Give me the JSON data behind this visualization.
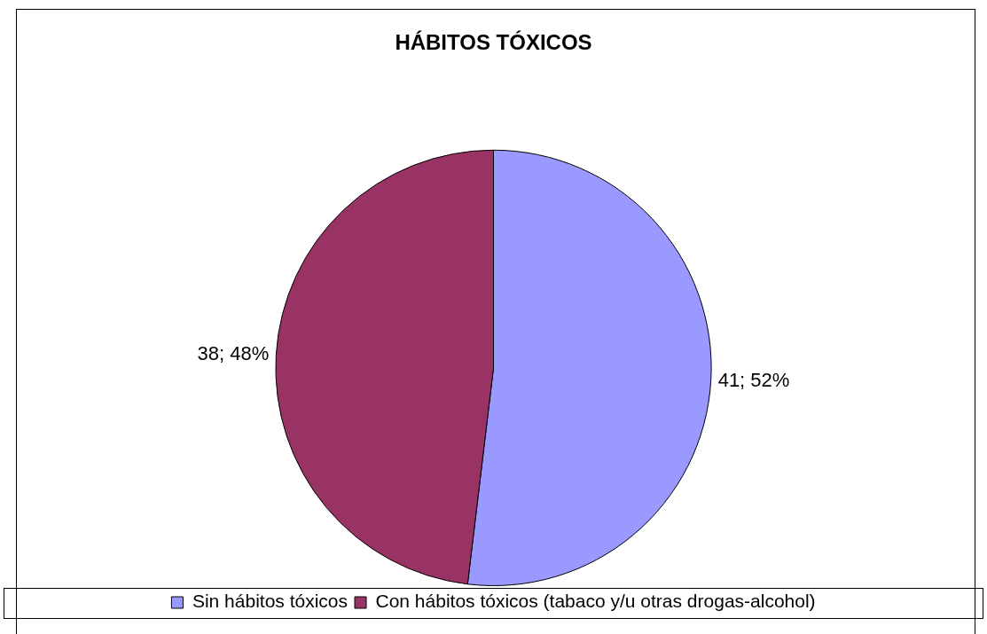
{
  "chart_data": {
    "type": "pie",
    "title": "HÁBITOS TÓXICOS",
    "categories": [
      "Sin hábitos tóxicos",
      "Con hábitos tóxicos (tabaco y/u otras drogas-alcohol)"
    ],
    "values": [
      41,
      38
    ],
    "colors": [
      "#9999ff",
      "#993366"
    ],
    "value_labels": [
      "41; 52%",
      "38; 48%"
    ],
    "legend": "bottom"
  }
}
